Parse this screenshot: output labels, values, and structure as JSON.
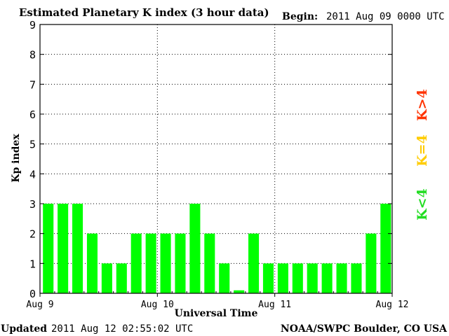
{
  "chart_data": {
    "type": "bar",
    "title": "Estimated Planetary K index (3 hour data)",
    "begin_label": "Begin:",
    "begin_value": "2011 Aug 09 0000 UTC",
    "ylabel": "Kp index",
    "xlabel": "Universal Time",
    "ylim": [
      0,
      9
    ],
    "y_ticks": [
      "0",
      "1",
      "2",
      "3",
      "4",
      "5",
      "6",
      "7",
      "8",
      "9"
    ],
    "x_ticks": [
      "Aug 9",
      "Aug 10",
      "Aug 11",
      "Aug 12"
    ],
    "bins_per_day": 8,
    "values": [
      3,
      3,
      3,
      2,
      1,
      1,
      2,
      2,
      2,
      2,
      3,
      2,
      1,
      0.1,
      2,
      1,
      1,
      1,
      1,
      1,
      1,
      1,
      2,
      3
    ],
    "grid": true,
    "bar_color": "#00ff00",
    "legend": [
      {
        "label": "K<4",
        "color": "#22dd22"
      },
      {
        "label": "K=4",
        "color": "#ffcc00"
      },
      {
        "label": "K>4",
        "color": "#ff3300"
      }
    ]
  },
  "footer": {
    "updated_label": "Updated",
    "updated_value": "2011 Aug 12 02:55:02 UTC",
    "source": "NOAA/SWPC Boulder, CO USA"
  }
}
